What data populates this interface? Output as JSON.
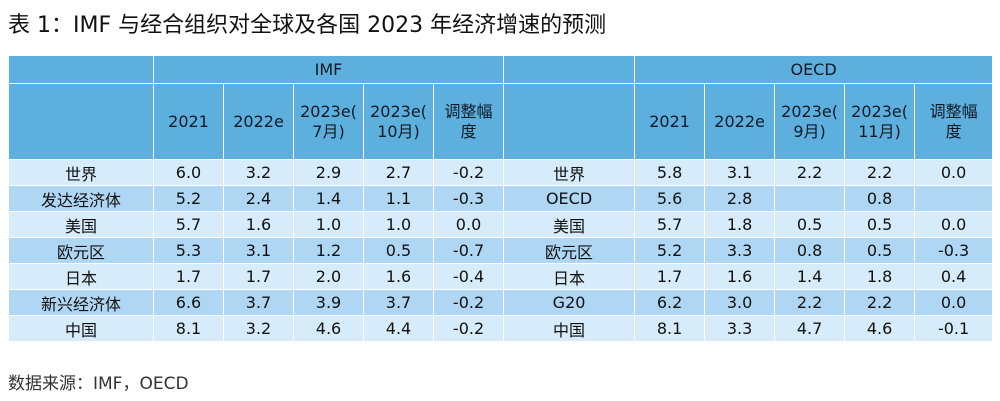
{
  "title": "表 1：IMF 与经合组织对全球及各国 2023 年经济增速的预测",
  "groups": {
    "imf": "IMF",
    "oecd": "OECD"
  },
  "imf_columns": [
    {
      "id": "2021",
      "lines": [
        "2021"
      ]
    },
    {
      "id": "2022e",
      "lines": [
        "2022e"
      ]
    },
    {
      "id": "2023e-jul",
      "lines": [
        "2023e(",
        "7月)"
      ]
    },
    {
      "id": "2023e-oct",
      "lines": [
        "2023e(",
        "10月)"
      ]
    },
    {
      "id": "adj",
      "lines": [
        "调整幅",
        "度"
      ]
    }
  ],
  "oecd_columns": [
    {
      "id": "2021",
      "lines": [
        "2021"
      ]
    },
    {
      "id": "2022e",
      "lines": [
        "2022e"
      ]
    },
    {
      "id": "2023e-sep",
      "lines": [
        "2023e(",
        "9月)"
      ]
    },
    {
      "id": "2023e-nov",
      "lines": [
        "2023e(",
        "11月)"
      ]
    },
    {
      "id": "adj",
      "lines": [
        "调整幅",
        "度"
      ]
    }
  ],
  "rows": [
    {
      "imf_region": "世界",
      "imf": [
        "6.0",
        "3.2",
        "2.9",
        "2.7",
        "-0.2"
      ],
      "oecd_region": "世界",
      "oecd": [
        "5.8",
        "3.1",
        "2.2",
        "2.2",
        "0.0"
      ]
    },
    {
      "imf_region": "发达经济体",
      "imf": [
        "5.2",
        "2.4",
        "1.4",
        "1.1",
        "-0.3"
      ],
      "oecd_region": "OECD",
      "oecd": [
        "5.6",
        "2.8",
        "",
        "0.8",
        ""
      ]
    },
    {
      "imf_region": "美国",
      "imf": [
        "5.7",
        "1.6",
        "1.0",
        "1.0",
        "0.0"
      ],
      "oecd_region": "美国",
      "oecd": [
        "5.7",
        "1.8",
        "0.5",
        "0.5",
        "0.0"
      ]
    },
    {
      "imf_region": "欧元区",
      "imf": [
        "5.3",
        "3.1",
        "1.2",
        "0.5",
        "-0.7"
      ],
      "oecd_region": "欧元区",
      "oecd": [
        "5.2",
        "3.3",
        "0.8",
        "0.5",
        "-0.3"
      ]
    },
    {
      "imf_region": "日本",
      "imf": [
        "1.7",
        "1.7",
        "2.0",
        "1.6",
        "-0.4"
      ],
      "oecd_region": "日本",
      "oecd": [
        "1.7",
        "1.6",
        "1.4",
        "1.8",
        "0.4"
      ]
    },
    {
      "imf_region": "新兴经济体",
      "imf": [
        "6.6",
        "3.7",
        "3.9",
        "3.7",
        "-0.2"
      ],
      "oecd_region": "G20",
      "oecd": [
        "6.2",
        "3.0",
        "2.2",
        "2.2",
        "0.0"
      ]
    },
    {
      "imf_region": "中国",
      "imf": [
        "8.1",
        "3.2",
        "4.6",
        "4.4",
        "-0.2"
      ],
      "oecd_region": "中国",
      "oecd": [
        "8.1",
        "3.3",
        "4.7",
        "4.6",
        "-0.1"
      ]
    }
  ],
  "source_note": "数据来源：IMF，OECD"
}
